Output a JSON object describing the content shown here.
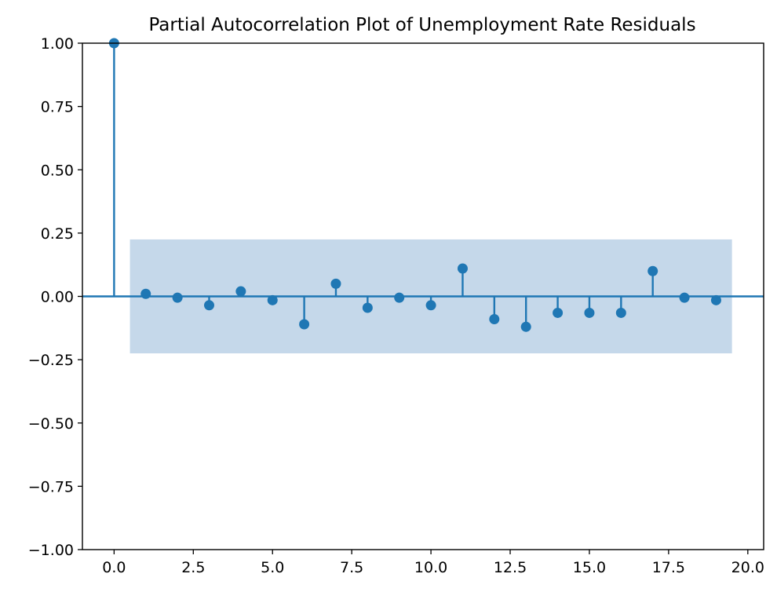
{
  "chart_data": {
    "type": "stem",
    "title": "Partial Autocorrelation Plot of Unemployment Rate Residuals",
    "xlabel": "",
    "ylabel": "",
    "xlim": [
      -1,
      20.5
    ],
    "ylim": [
      -1.0,
      1.0
    ],
    "x_ticks": [
      0.0,
      2.5,
      5.0,
      7.5,
      10.0,
      12.5,
      15.0,
      17.5,
      20.0
    ],
    "x_tick_labels": [
      "0.0",
      "2.5",
      "5.0",
      "7.5",
      "10.0",
      "12.5",
      "15.0",
      "17.5",
      "20.0"
    ],
    "y_ticks": [
      1.0,
      0.75,
      0.5,
      0.25,
      0.0,
      -0.25,
      -0.5,
      -0.75,
      -1.0
    ],
    "y_tick_labels": [
      "1.00",
      "0.75",
      "0.50",
      "0.25",
      "0.00",
      "−0.25",
      "−0.50",
      "−0.75",
      "−1.00"
    ],
    "lags": [
      0,
      1,
      2,
      3,
      4,
      5,
      6,
      7,
      8,
      9,
      10,
      11,
      12,
      13,
      14,
      15,
      16,
      17,
      18,
      19
    ],
    "values": [
      1.0,
      0.01,
      -0.005,
      -0.035,
      0.02,
      -0.015,
      -0.11,
      0.05,
      -0.045,
      -0.005,
      -0.035,
      0.11,
      -0.09,
      -0.12,
      -0.065,
      -0.065,
      -0.065,
      0.1,
      -0.005,
      -0.015
    ],
    "confidence_band": {
      "x_range": [
        0.5,
        19.5
      ],
      "lower": -0.225,
      "upper": 0.225
    },
    "grid": false,
    "legend": "none",
    "colors": {
      "stem": "#1f77b4",
      "band": "#c5d8ea"
    }
  }
}
